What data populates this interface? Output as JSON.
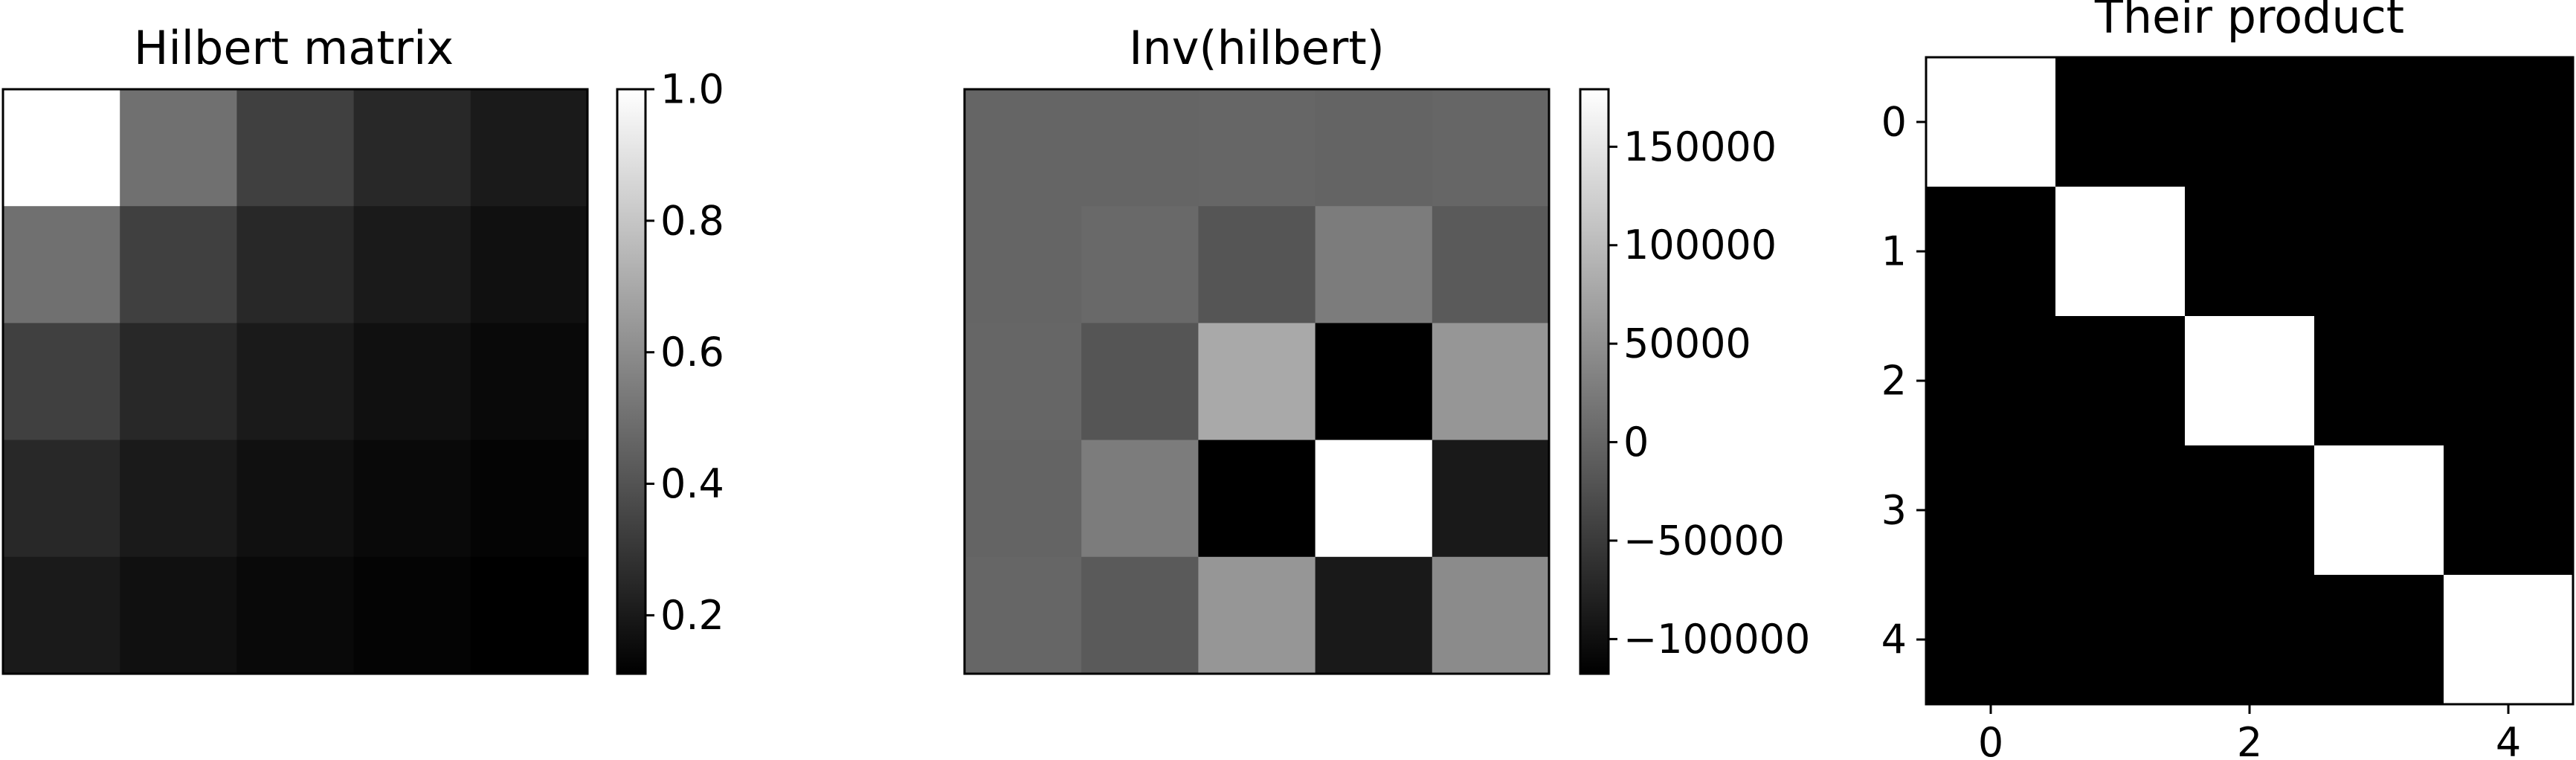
{
  "chart_data": [
    {
      "type": "heatmap",
      "title": "Hilbert matrix",
      "xlabel": "",
      "ylabel": "",
      "colormap": "gray",
      "axes_visible": false,
      "vmin": 0.1111,
      "vmax": 1.0,
      "matrix": [
        [
          1.0,
          0.5,
          0.3333,
          0.25,
          0.2
        ],
        [
          0.5,
          0.3333,
          0.25,
          0.2,
          0.1667
        ],
        [
          0.3333,
          0.25,
          0.2,
          0.1667,
          0.1429
        ],
        [
          0.25,
          0.2,
          0.1667,
          0.1429,
          0.125
        ],
        [
          0.2,
          0.1667,
          0.1429,
          0.125,
          0.1111
        ]
      ],
      "colorbar": {
        "ticks": [
          0.2,
          0.4,
          0.6,
          0.8,
          1.0
        ],
        "tick_labels": [
          "0.2",
          "0.4",
          "0.6",
          "0.8",
          "1.0"
        ]
      }
    },
    {
      "type": "heatmap",
      "title": "Inv(hilbert)",
      "xlabel": "",
      "ylabel": "",
      "colormap": "gray",
      "axes_visible": false,
      "vmin": -117600,
      "vmax": 179200,
      "matrix": [
        [
          25,
          -300,
          1050,
          -1400,
          630
        ],
        [
          -300,
          4800,
          -18900,
          26880,
          -12600
        ],
        [
          1050,
          -18900,
          79380,
          -117600,
          56700
        ],
        [
          -1400,
          26880,
          -117600,
          179200,
          -88200
        ],
        [
          630,
          -12600,
          56700,
          -88200,
          44100
        ]
      ],
      "colorbar": {
        "ticks": [
          -100000,
          -50000,
          0,
          50000,
          100000,
          150000
        ],
        "tick_labels": [
          "−100000",
          "−50000",
          "0",
          "50000",
          "100000",
          "150000"
        ]
      }
    },
    {
      "type": "heatmap",
      "title": "Their product",
      "xlabel": "",
      "ylabel": "",
      "colormap": "gray",
      "axes_visible": true,
      "vmin": 0,
      "vmax": 1,
      "matrix": [
        [
          1,
          0,
          0,
          0,
          0
        ],
        [
          0,
          1,
          0,
          0,
          0
        ],
        [
          0,
          0,
          1,
          0,
          0
        ],
        [
          0,
          0,
          0,
          1,
          0
        ],
        [
          0,
          0,
          0,
          0,
          1
        ]
      ],
      "xticks": [
        0,
        2,
        4
      ],
      "xtick_labels": [
        "0",
        "2",
        "4"
      ],
      "yticks": [
        0,
        1,
        2,
        3,
        4
      ],
      "ytick_labels": [
        "0",
        "1",
        "2",
        "3",
        "4"
      ]
    }
  ]
}
